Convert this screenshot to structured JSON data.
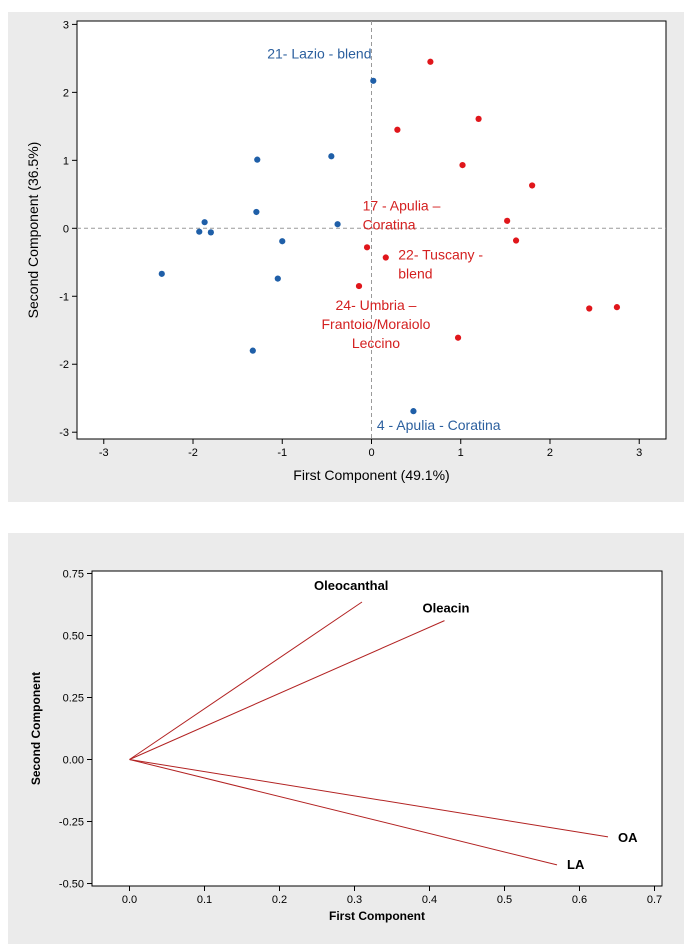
{
  "chart_data": [
    {
      "type": "scatter",
      "title": "",
      "xlabel": "First Component (49.1%)",
      "ylabel": "Second Component (36.5%)",
      "xlim": [
        -3.3,
        3.3
      ],
      "ylim": [
        -3.1,
        3.05
      ],
      "xticks": [
        -3,
        -2,
        -1,
        0,
        1,
        2,
        3
      ],
      "yticks": [
        -3,
        -2,
        -1,
        0,
        1,
        2,
        3
      ],
      "reference_lines": {
        "x": 0,
        "y": 0,
        "style": "dashed"
      },
      "colors": {
        "blue": "#1f5fa8",
        "red": "#e0161b",
        "blue_text": "#2b5f9e",
        "red_text": "#d42020"
      },
      "series": [
        {
          "color": "blue",
          "points": [
            {
              "x": -2.35,
              "y": -0.67
            },
            {
              "x": -1.93,
              "y": -0.05
            },
            {
              "x": -1.87,
              "y": 0.09
            },
            {
              "x": -1.8,
              "y": -0.06
            },
            {
              "x": -1.28,
              "y": 1.01
            },
            {
              "x": -1.29,
              "y": 0.24
            },
            {
              "x": -1.05,
              "y": -0.74
            },
            {
              "x": -1.0,
              "y": -0.19
            },
            {
              "x": -1.33,
              "y": -1.8
            },
            {
              "x": -0.45,
              "y": 1.06
            },
            {
              "x": -0.38,
              "y": 0.06
            },
            {
              "x": 0.02,
              "y": 2.17
            },
            {
              "x": 0.47,
              "y": -2.69
            }
          ]
        },
        {
          "color": "red",
          "points": [
            {
              "x": 0.66,
              "y": 2.45
            },
            {
              "x": 0.29,
              "y": 1.45
            },
            {
              "x": 1.2,
              "y": 1.61
            },
            {
              "x": 1.02,
              "y": 0.93
            },
            {
              "x": 1.8,
              "y": 0.63
            },
            {
              "x": 1.52,
              "y": 0.11
            },
            {
              "x": 1.62,
              "y": -0.18
            },
            {
              "x": -0.05,
              "y": -0.28
            },
            {
              "x": 0.16,
              "y": -0.43
            },
            {
              "x": -0.14,
              "y": -0.85
            },
            {
              "x": 0.97,
              "y": -1.61
            },
            {
              "x": 2.44,
              "y": -1.18
            },
            {
              "x": 2.75,
              "y": -1.16
            }
          ]
        }
      ],
      "annotations": [
        {
          "lines": [
            "21- Lazio - blend"
          ],
          "color": "blue",
          "x": 0.0,
          "y": 2.5,
          "anchor": "end"
        },
        {
          "lines": [
            "17 - Apulia –",
            "Coratina"
          ],
          "color": "red",
          "x": -0.1,
          "y": 0.26,
          "anchor": "start"
        },
        {
          "lines": [
            "22- Tuscany -",
            "blend"
          ],
          "color": "red",
          "x": 0.3,
          "y": -0.46,
          "anchor": "start"
        },
        {
          "lines": [
            "24- Umbria –",
            "Frantoio/Moraiolo",
            "Leccino"
          ],
          "color": "red",
          "x": 0.05,
          "y": -1.2,
          "anchor": "middle"
        },
        {
          "lines": [
            "4 - Apulia - Coratina"
          ],
          "color": "blue",
          "x": 0.06,
          "y": -2.97,
          "anchor": "start"
        }
      ]
    },
    {
      "type": "line",
      "title": "",
      "xlabel": "First Component",
      "ylabel": "Second Component",
      "xlim": [
        -0.05,
        0.71
      ],
      "ylim": [
        -0.51,
        0.76
      ],
      "xticks": [
        "0.0",
        "0.1",
        "0.2",
        "0.3",
        "0.4",
        "0.5",
        "0.6",
        "0.7"
      ],
      "yticks": [
        "0.75",
        "0.50",
        "0.25",
        "0.00",
        "-0.25",
        "-0.50"
      ],
      "vector_color": "#b22222",
      "vectors": [
        {
          "name": "Oleocanthal",
          "x": 0.31,
          "y": 0.635
        },
        {
          "name": "Oleacin",
          "x": 0.42,
          "y": 0.56
        },
        {
          "name": "OA",
          "x": 0.638,
          "y": -0.312
        },
        {
          "name": "LA",
          "x": 0.57,
          "y": -0.425
        }
      ]
    }
  ]
}
